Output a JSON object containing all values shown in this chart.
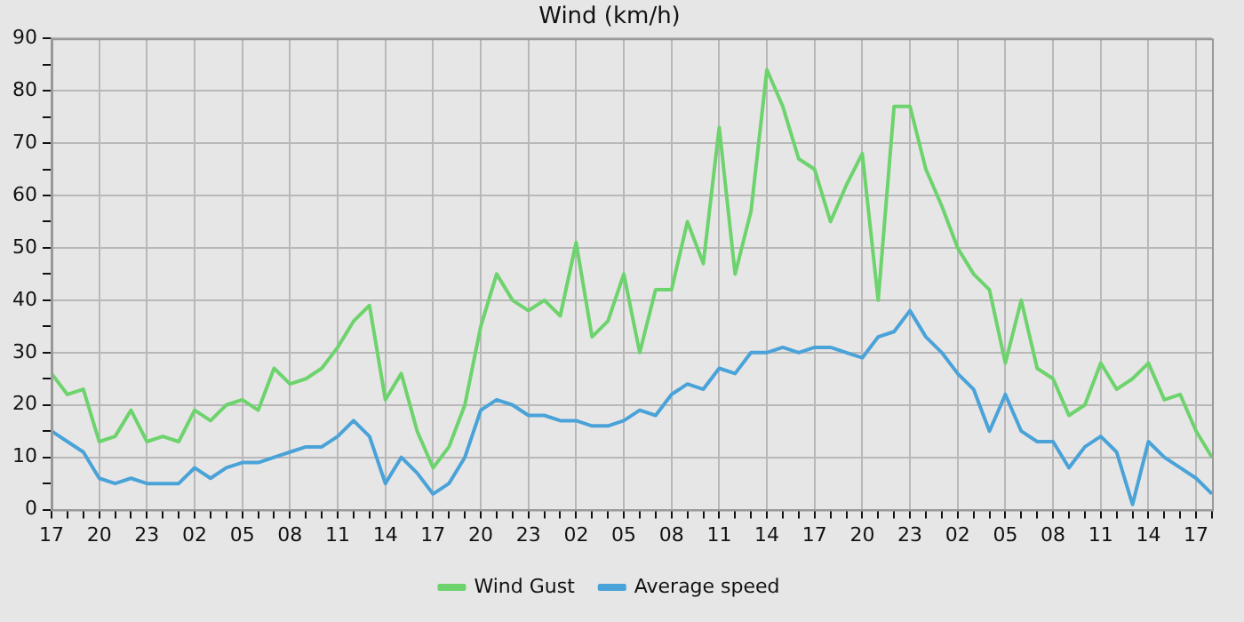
{
  "chart_data": {
    "type": "line",
    "title": "Wind (km/h)",
    "categories": [
      "17",
      null,
      null,
      "20",
      null,
      null,
      "23",
      null,
      null,
      "02",
      null,
      null,
      "05",
      null,
      null,
      "08",
      null,
      null,
      "11",
      null,
      null,
      "14",
      null,
      null,
      "17",
      null,
      null,
      "20",
      null,
      null,
      "23",
      null,
      null,
      "02",
      null,
      null,
      "05",
      null,
      null,
      "08",
      null,
      null,
      "11",
      null,
      null,
      "14",
      null,
      null,
      "17",
      null,
      null,
      "20",
      null,
      null,
      "23",
      null,
      null,
      "02",
      null,
      null,
      "05",
      null,
      null,
      "08",
      null,
      null,
      "11",
      null,
      null,
      "14",
      null,
      null,
      "17",
      null
    ],
    "ylim": [
      0,
      90
    ],
    "yticks": [
      0,
      {
        "value": 5,
        "label": null
      },
      10,
      {
        "value": 15,
        "label": null
      },
      20,
      {
        "value": 25,
        "label": null
      },
      30,
      {
        "value": 35,
        "label": null
      },
      40,
      {
        "value": 45,
        "label": null
      },
      50,
      {
        "value": 55,
        "label": null
      },
      60,
      {
        "value": 65,
        "label": null
      },
      70,
      {
        "value": 75,
        "label": null
      },
      80,
      {
        "value": 85,
        "label": null
      },
      90
    ],
    "grid": true,
    "legend": "bottom",
    "marker": "none",
    "line_style": "solid",
    "series": [
      {
        "name": "Wind Gust",
        "color": "#6dd36d",
        "values": [
          26,
          22,
          23,
          13,
          14,
          19,
          13,
          14,
          13,
          19,
          17,
          20,
          21,
          19,
          27,
          24,
          25,
          27,
          31,
          36,
          39,
          21,
          26,
          15,
          8,
          12,
          20,
          35,
          45,
          40,
          38,
          40,
          37,
          51,
          33,
          36,
          45,
          30,
          42,
          42,
          55,
          47,
          73,
          45,
          57,
          84,
          77,
          67,
          65,
          55,
          62,
          68,
          40,
          77,
          77,
          65,
          58,
          50,
          45,
          42,
          28,
          40,
          27,
          25,
          18,
          20,
          28,
          23,
          25,
          28,
          21,
          22,
          15,
          10
        ]
      },
      {
        "name": "Average speed",
        "color": "#4aa3d8",
        "values": [
          15,
          13,
          11,
          6,
          5,
          6,
          5,
          5,
          5,
          8,
          6,
          8,
          9,
          9,
          10,
          11,
          12,
          12,
          14,
          17,
          14,
          5,
          10,
          7,
          3,
          5,
          10,
          19,
          21,
          20,
          18,
          18,
          17,
          17,
          16,
          16,
          17,
          19,
          18,
          22,
          24,
          23,
          27,
          26,
          30,
          30,
          31,
          30,
          31,
          31,
          30,
          29,
          33,
          34,
          38,
          33,
          30,
          26,
          23,
          15,
          22,
          15,
          13,
          13,
          8,
          12,
          14,
          11,
          1,
          13,
          10,
          8,
          6,
          3
        ]
      }
    ]
  }
}
